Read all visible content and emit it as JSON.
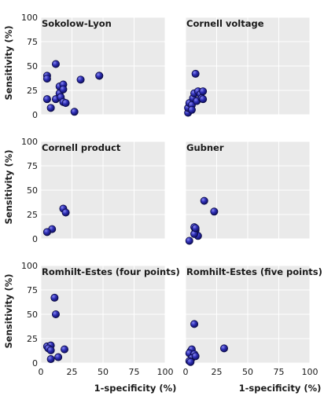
{
  "chart_data": {
    "type": "scatter",
    "layout": "3 rows x 2 columns small multiples",
    "xlabel": "1-specificity (%)",
    "ylabel": "Sensitivity (%)",
    "xlim": [
      0,
      100
    ],
    "ylim": [
      0,
      100
    ],
    "xticks": [
      0,
      25,
      50,
      75,
      100
    ],
    "yticks": [
      0,
      25,
      50,
      75,
      100
    ],
    "grid": true,
    "marker_color": "#2b2ba0",
    "panels": [
      {
        "title": "Sokolow-Lyon",
        "points": [
          [
            5,
            40
          ],
          [
            5,
            37
          ],
          [
            12,
            52
          ],
          [
            5,
            16
          ],
          [
            8,
            7
          ],
          [
            12,
            16
          ],
          [
            15,
            29
          ],
          [
            15,
            22
          ],
          [
            18,
            31
          ],
          [
            18,
            26
          ],
          [
            16,
            18
          ],
          [
            18,
            13
          ],
          [
            20,
            12
          ],
          [
            32,
            36
          ],
          [
            47,
            40
          ],
          [
            47,
            40
          ],
          [
            27,
            3
          ]
        ]
      },
      {
        "title": "Cornell voltage",
        "points": [
          [
            8,
            42
          ],
          [
            2,
            2
          ],
          [
            2,
            7
          ],
          [
            3,
            12
          ],
          [
            5,
            10
          ],
          [
            6,
            17
          ],
          [
            7,
            22
          ],
          [
            10,
            24
          ],
          [
            12,
            21
          ],
          [
            14,
            24
          ],
          [
            9,
            14
          ],
          [
            13,
            17
          ],
          [
            14,
            16
          ],
          [
            5,
            5
          ]
        ]
      },
      {
        "title": "Cornell product",
        "points": [
          [
            18,
            31
          ],
          [
            20,
            27
          ],
          [
            9,
            10
          ],
          [
            5,
            7
          ]
        ]
      },
      {
        "title": "Gubner",
        "points": [
          [
            15,
            39
          ],
          [
            23,
            28
          ],
          [
            7,
            12
          ],
          [
            8,
            9
          ],
          [
            10,
            3
          ],
          [
            7,
            5
          ],
          [
            3,
            -2
          ],
          [
            8,
            11
          ]
        ]
      },
      {
        "title": "Romhilt-Estes (four points)",
        "points": [
          [
            11,
            67
          ],
          [
            12,
            50
          ],
          [
            5,
            17
          ],
          [
            8,
            18
          ],
          [
            6,
            15
          ],
          [
            19,
            14
          ],
          [
            8,
            13
          ],
          [
            14,
            6
          ],
          [
            8,
            4
          ]
        ]
      },
      {
        "title": "Romhilt-Estes (five points)",
        "points": [
          [
            7,
            40
          ],
          [
            31,
            15
          ],
          [
            4,
            12
          ],
          [
            5,
            14
          ],
          [
            3,
            10
          ],
          [
            7,
            9
          ],
          [
            5,
            5
          ],
          [
            8,
            7
          ],
          [
            3,
            2
          ],
          [
            4,
            1
          ]
        ]
      }
    ]
  }
}
